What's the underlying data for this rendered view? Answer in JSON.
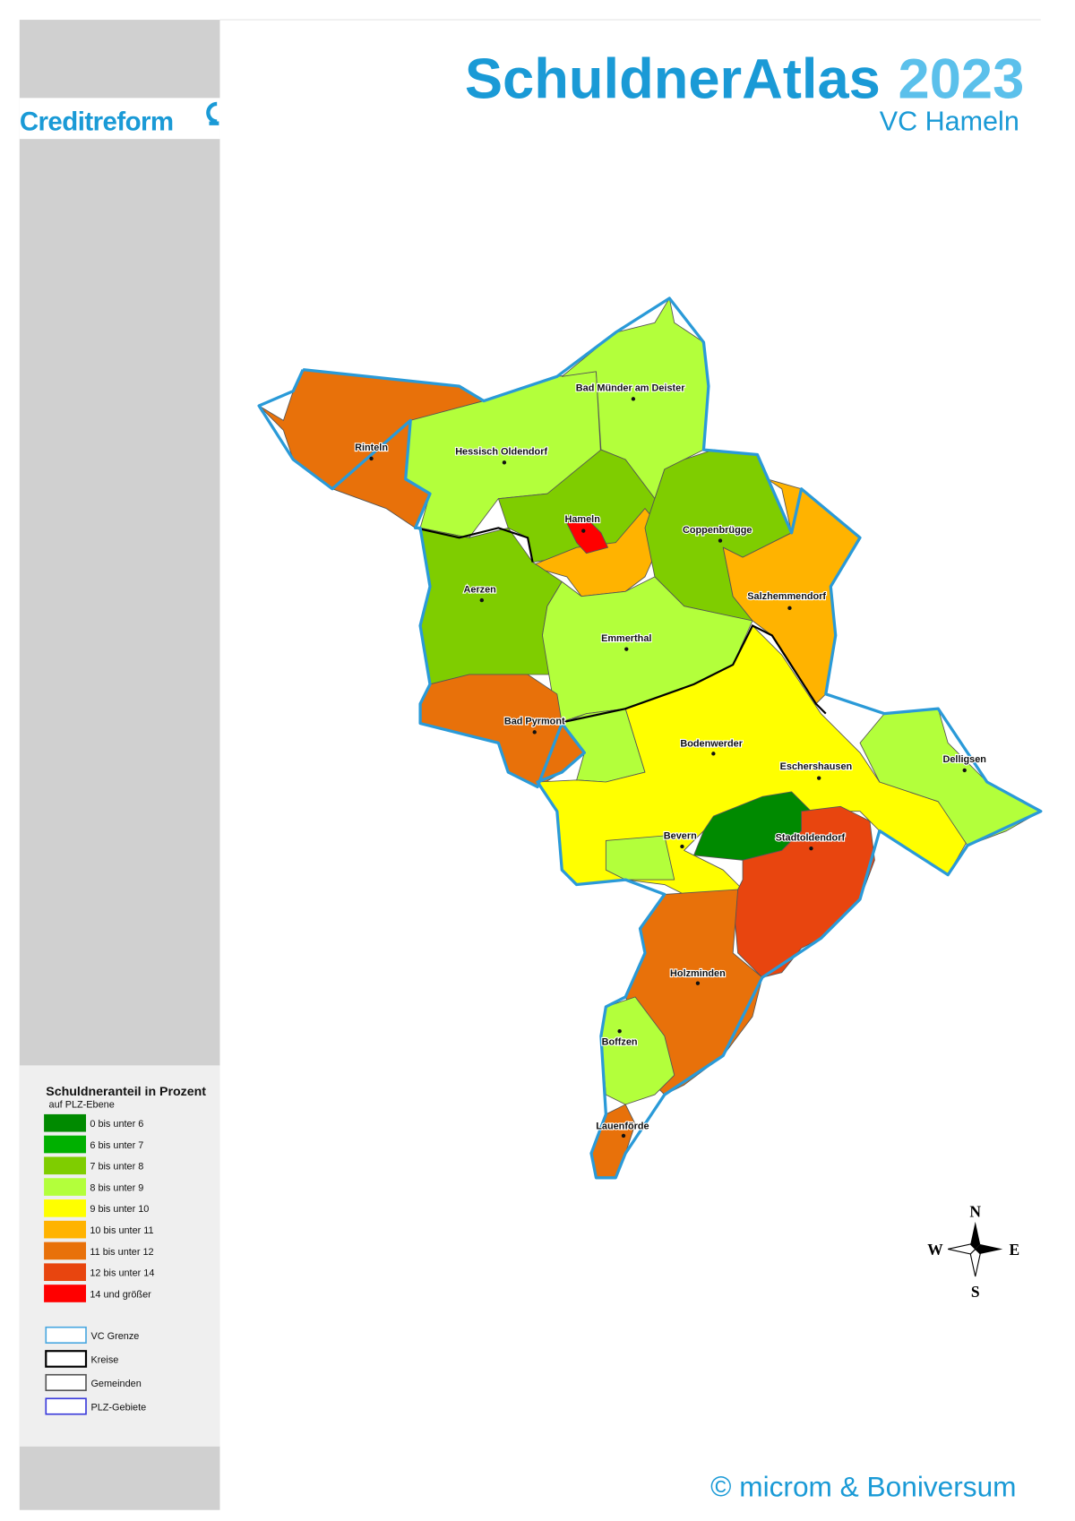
{
  "logo": "Creditreform",
  "header": {
    "title": "SchuldnerAtlas",
    "year": "2023",
    "subtitle": "VC Hameln"
  },
  "places": [
    "Bad Münder am Deister",
    "Hessisch Oldendorf",
    "Rinteln",
    "Hameln",
    "Coppenbrügge",
    "Aerzen",
    "Salzhemmendorf",
    "Emmerthal",
    "Bad Pyrmont",
    "Bodenwerder",
    "Eschershausen",
    "Delligsen",
    "Bevern",
    "Stadtoldendorf",
    "Holzminden",
    "Boffzen",
    "Lauenförde"
  ],
  "legend": {
    "title": "Schuldneranteil in Prozent",
    "subtitle": "auf PLZ-Ebene",
    "classes": [
      {
        "label": "0 bis unter 6",
        "color": "#008a00"
      },
      {
        "label": "6 bis unter 7",
        "color": "#00b000"
      },
      {
        "label": "7 bis unter 8",
        "color": "#7fcd00"
      },
      {
        "label": "8 bis unter 9",
        "color": "#b3ff3b"
      },
      {
        "label": "9 bis unter 10",
        "color": "#ffff00"
      },
      {
        "label": "10 bis unter 11",
        "color": "#ffb300"
      },
      {
        "label": "11 bis unter 12",
        "color": "#e8710a"
      },
      {
        "label": "12 bis unter 14",
        "color": "#e8450f"
      },
      {
        "label": "14 und größer",
        "color": "#ff0000"
      }
    ],
    "borders": [
      {
        "label": "VC Grenze",
        "color": "#4aa8e0"
      },
      {
        "label": "Kreise",
        "color": "#000000"
      },
      {
        "label": "Gemeinden",
        "color": "#555555"
      },
      {
        "label": "PLZ-Gebiete",
        "color": "#3a3adb"
      }
    ]
  },
  "compass": {
    "n": "N",
    "e": "E",
    "s": "S",
    "w": "W"
  },
  "footer": "© microm & Boniversum"
}
